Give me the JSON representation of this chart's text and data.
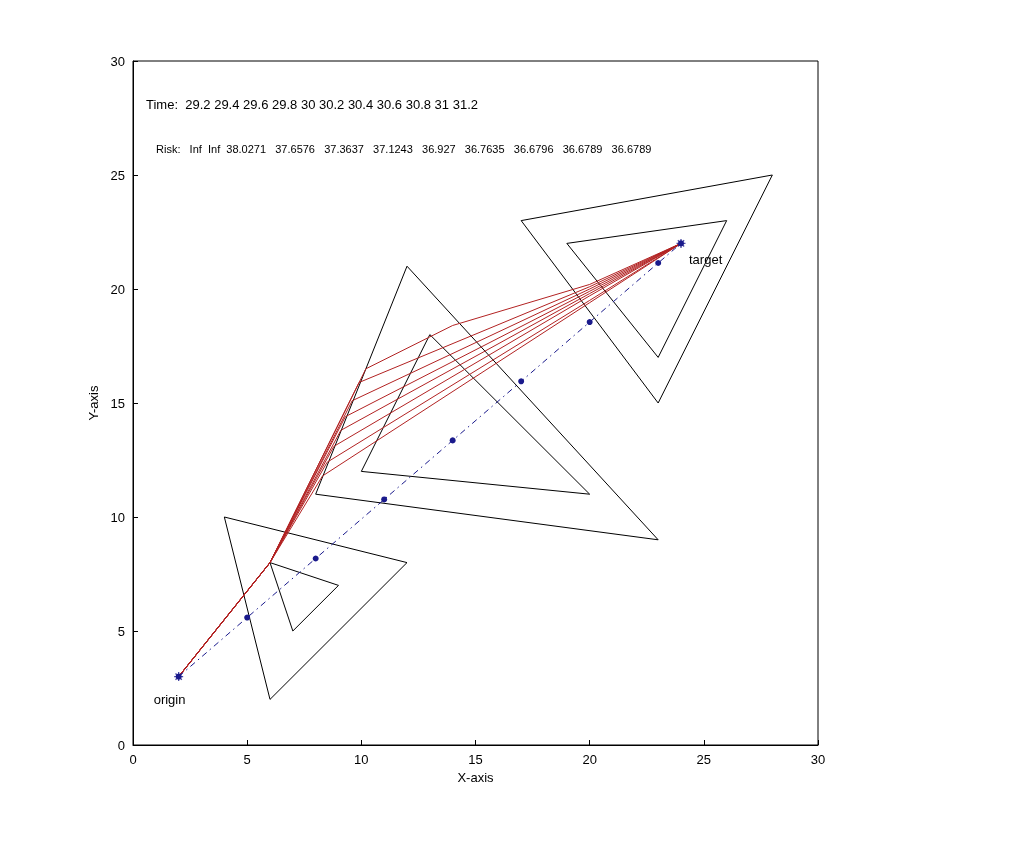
{
  "chart_data": {
    "type": "line",
    "xlabel": "X-axis",
    "ylabel": "Y-axis",
    "xlim": [
      0,
      30
    ],
    "ylim": [
      0,
      30
    ],
    "xticks": [
      0,
      5,
      10,
      15,
      20,
      25,
      30
    ],
    "yticks": [
      0,
      5,
      10,
      15,
      20,
      25,
      30
    ],
    "grid": false,
    "annotations": [
      "Time:  29.2 29.4 29.6 29.8 30 30.2 30.4 30.6 30.8 31 31.2",
      "Risk:   Inf  Inf  38.0271   37.6576   37.3637   37.1243   36.927   36.7635   36.6796   36.6789   36.6789",
      {
        "text": "origin",
        "x": 2,
        "y": 3
      },
      {
        "text": "target",
        "x": 24,
        "y": 22
      }
    ],
    "series": [
      {
        "color": "#000000",
        "marker": "none",
        "line_style": "solid",
        "x": [
          4,
          6,
          12
        ],
        "values": [
          10,
          2,
          8
        ]
      },
      {
        "color": "#000000",
        "marker": "none",
        "line_style": "solid",
        "x": [
          4,
          12
        ],
        "values": [
          10,
          8
        ]
      },
      {
        "color": "#000000",
        "marker": "none",
        "line_style": "solid",
        "x": [
          6,
          7,
          9
        ],
        "values": [
          8,
          5,
          7
        ]
      },
      {
        "color": "#000000",
        "marker": "none",
        "line_style": "solid",
        "x": [
          6,
          9
        ],
        "values": [
          8,
          7
        ]
      },
      {
        "color": "#000000",
        "marker": "none",
        "line_style": "solid",
        "x": [
          8,
          12,
          23
        ],
        "values": [
          11,
          21,
          9
        ]
      },
      {
        "color": "#000000",
        "marker": "none",
        "line_style": "solid",
        "x": [
          8,
          23
        ],
        "values": [
          11,
          9
        ]
      },
      {
        "color": "#000000",
        "marker": "none",
        "line_style": "solid",
        "x": [
          10,
          13,
          20
        ],
        "values": [
          12,
          18,
          11
        ]
      },
      {
        "color": "#000000",
        "marker": "none",
        "line_style": "solid",
        "x": [
          10,
          20
        ],
        "values": [
          12,
          11
        ]
      },
      {
        "color": "#000000",
        "marker": "none",
        "line_style": "solid",
        "x": [
          17,
          23,
          28
        ],
        "values": [
          23,
          15,
          25
        ]
      },
      {
        "color": "#000000",
        "marker": "none",
        "line_style": "solid",
        "x": [
          17,
          28
        ],
        "values": [
          23,
          25
        ]
      },
      {
        "color": "#000000",
        "marker": "none",
        "line_style": "solid",
        "x": [
          19,
          23,
          26
        ],
        "values": [
          22,
          17,
          23
        ]
      },
      {
        "color": "#000000",
        "marker": "none",
        "line_style": "solid",
        "x": [
          19,
          26
        ],
        "values": [
          22,
          23
        ]
      },
      {
        "color": "#b22222",
        "marker": "none",
        "line_style": "solid",
        "x": [
          2,
          6,
          10.2,
          13,
          14,
          20,
          24
        ],
        "values": [
          3,
          8,
          16.5,
          17.9,
          18.4,
          20.2,
          22
        ]
      },
      {
        "color": "#b22222",
        "marker": "none",
        "line_style": "solid",
        "x": [
          2,
          6,
          9.9,
          20,
          24
        ],
        "values": [
          3,
          8,
          15.9,
          20.1,
          22
        ]
      },
      {
        "color": "#b22222",
        "marker": "none",
        "line_style": "solid",
        "x": [
          2,
          6,
          9.6,
          20,
          24
        ],
        "values": [
          3,
          8,
          15.1,
          20,
          22
        ]
      },
      {
        "color": "#b22222",
        "marker": "none",
        "line_style": "solid",
        "x": [
          2,
          6,
          9.3,
          20,
          24
        ],
        "values": [
          3,
          8,
          14.4,
          19.9,
          22
        ]
      },
      {
        "color": "#b22222",
        "marker": "none",
        "line_style": "solid",
        "x": [
          2,
          6,
          9.1,
          20,
          24
        ],
        "values": [
          3,
          8,
          13.8,
          19.8,
          22
        ]
      },
      {
        "color": "#b22222",
        "marker": "none",
        "line_style": "solid",
        "x": [
          2,
          6,
          8.8,
          20,
          24
        ],
        "values": [
          3,
          8,
          13.1,
          19.7,
          22
        ]
      },
      {
        "color": "#b22222",
        "marker": "none",
        "line_style": "solid",
        "x": [
          2,
          6,
          8.5,
          20,
          24
        ],
        "values": [
          3,
          8,
          12.4,
          19.5,
          22
        ]
      },
      {
        "color": "#b22222",
        "marker": "none",
        "line_style": "solid",
        "x": [
          2,
          6,
          8.3,
          20,
          24
        ],
        "values": [
          3,
          8,
          11.8,
          19.4,
          22
        ]
      },
      {
        "color": "#1a1a8c",
        "marker": "circle",
        "line_style": "dashed",
        "x": [
          2,
          5,
          8,
          11,
          14,
          17,
          20,
          23,
          24
        ],
        "values": [
          3,
          5.59,
          8.18,
          10.77,
          13.36,
          15.95,
          18.55,
          21.14,
          22
        ]
      },
      {
        "type": "scatter",
        "color": "#1a1a8c",
        "marker": "cross",
        "x": [
          2,
          24
        ],
        "values": [
          3,
          22
        ]
      }
    ]
  }
}
